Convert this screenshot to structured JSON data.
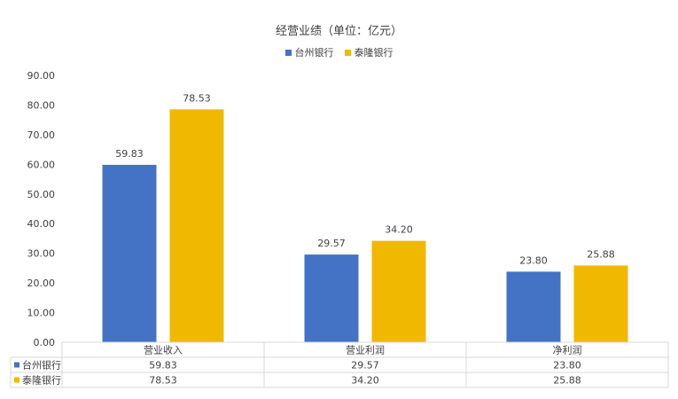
{
  "chart_data": {
    "type": "bar",
    "title": "经营业绩（单位：亿元）",
    "categories": [
      "营业收入",
      "营业利润",
      "净利润"
    ],
    "series": [
      {
        "name": "台州银行",
        "color": "#4472C4",
        "values": [
          59.83,
          29.57,
          23.8
        ],
        "labels": [
          "59.83",
          "29.57",
          "23.80"
        ]
      },
      {
        "name": "泰隆银行",
        "color": "#F0B800",
        "values": [
          78.53,
          34.2,
          25.88
        ],
        "labels": [
          "78.53",
          "34.20",
          "25.88"
        ]
      }
    ],
    "ylim": [
      0,
      90
    ],
    "yticks": [
      "0.00",
      "10.00",
      "20.00",
      "30.00",
      "40.00",
      "50.00",
      "60.00",
      "70.00",
      "80.00",
      "90.00"
    ],
    "legend_position": "top-center",
    "grid": false,
    "data_table": true
  }
}
